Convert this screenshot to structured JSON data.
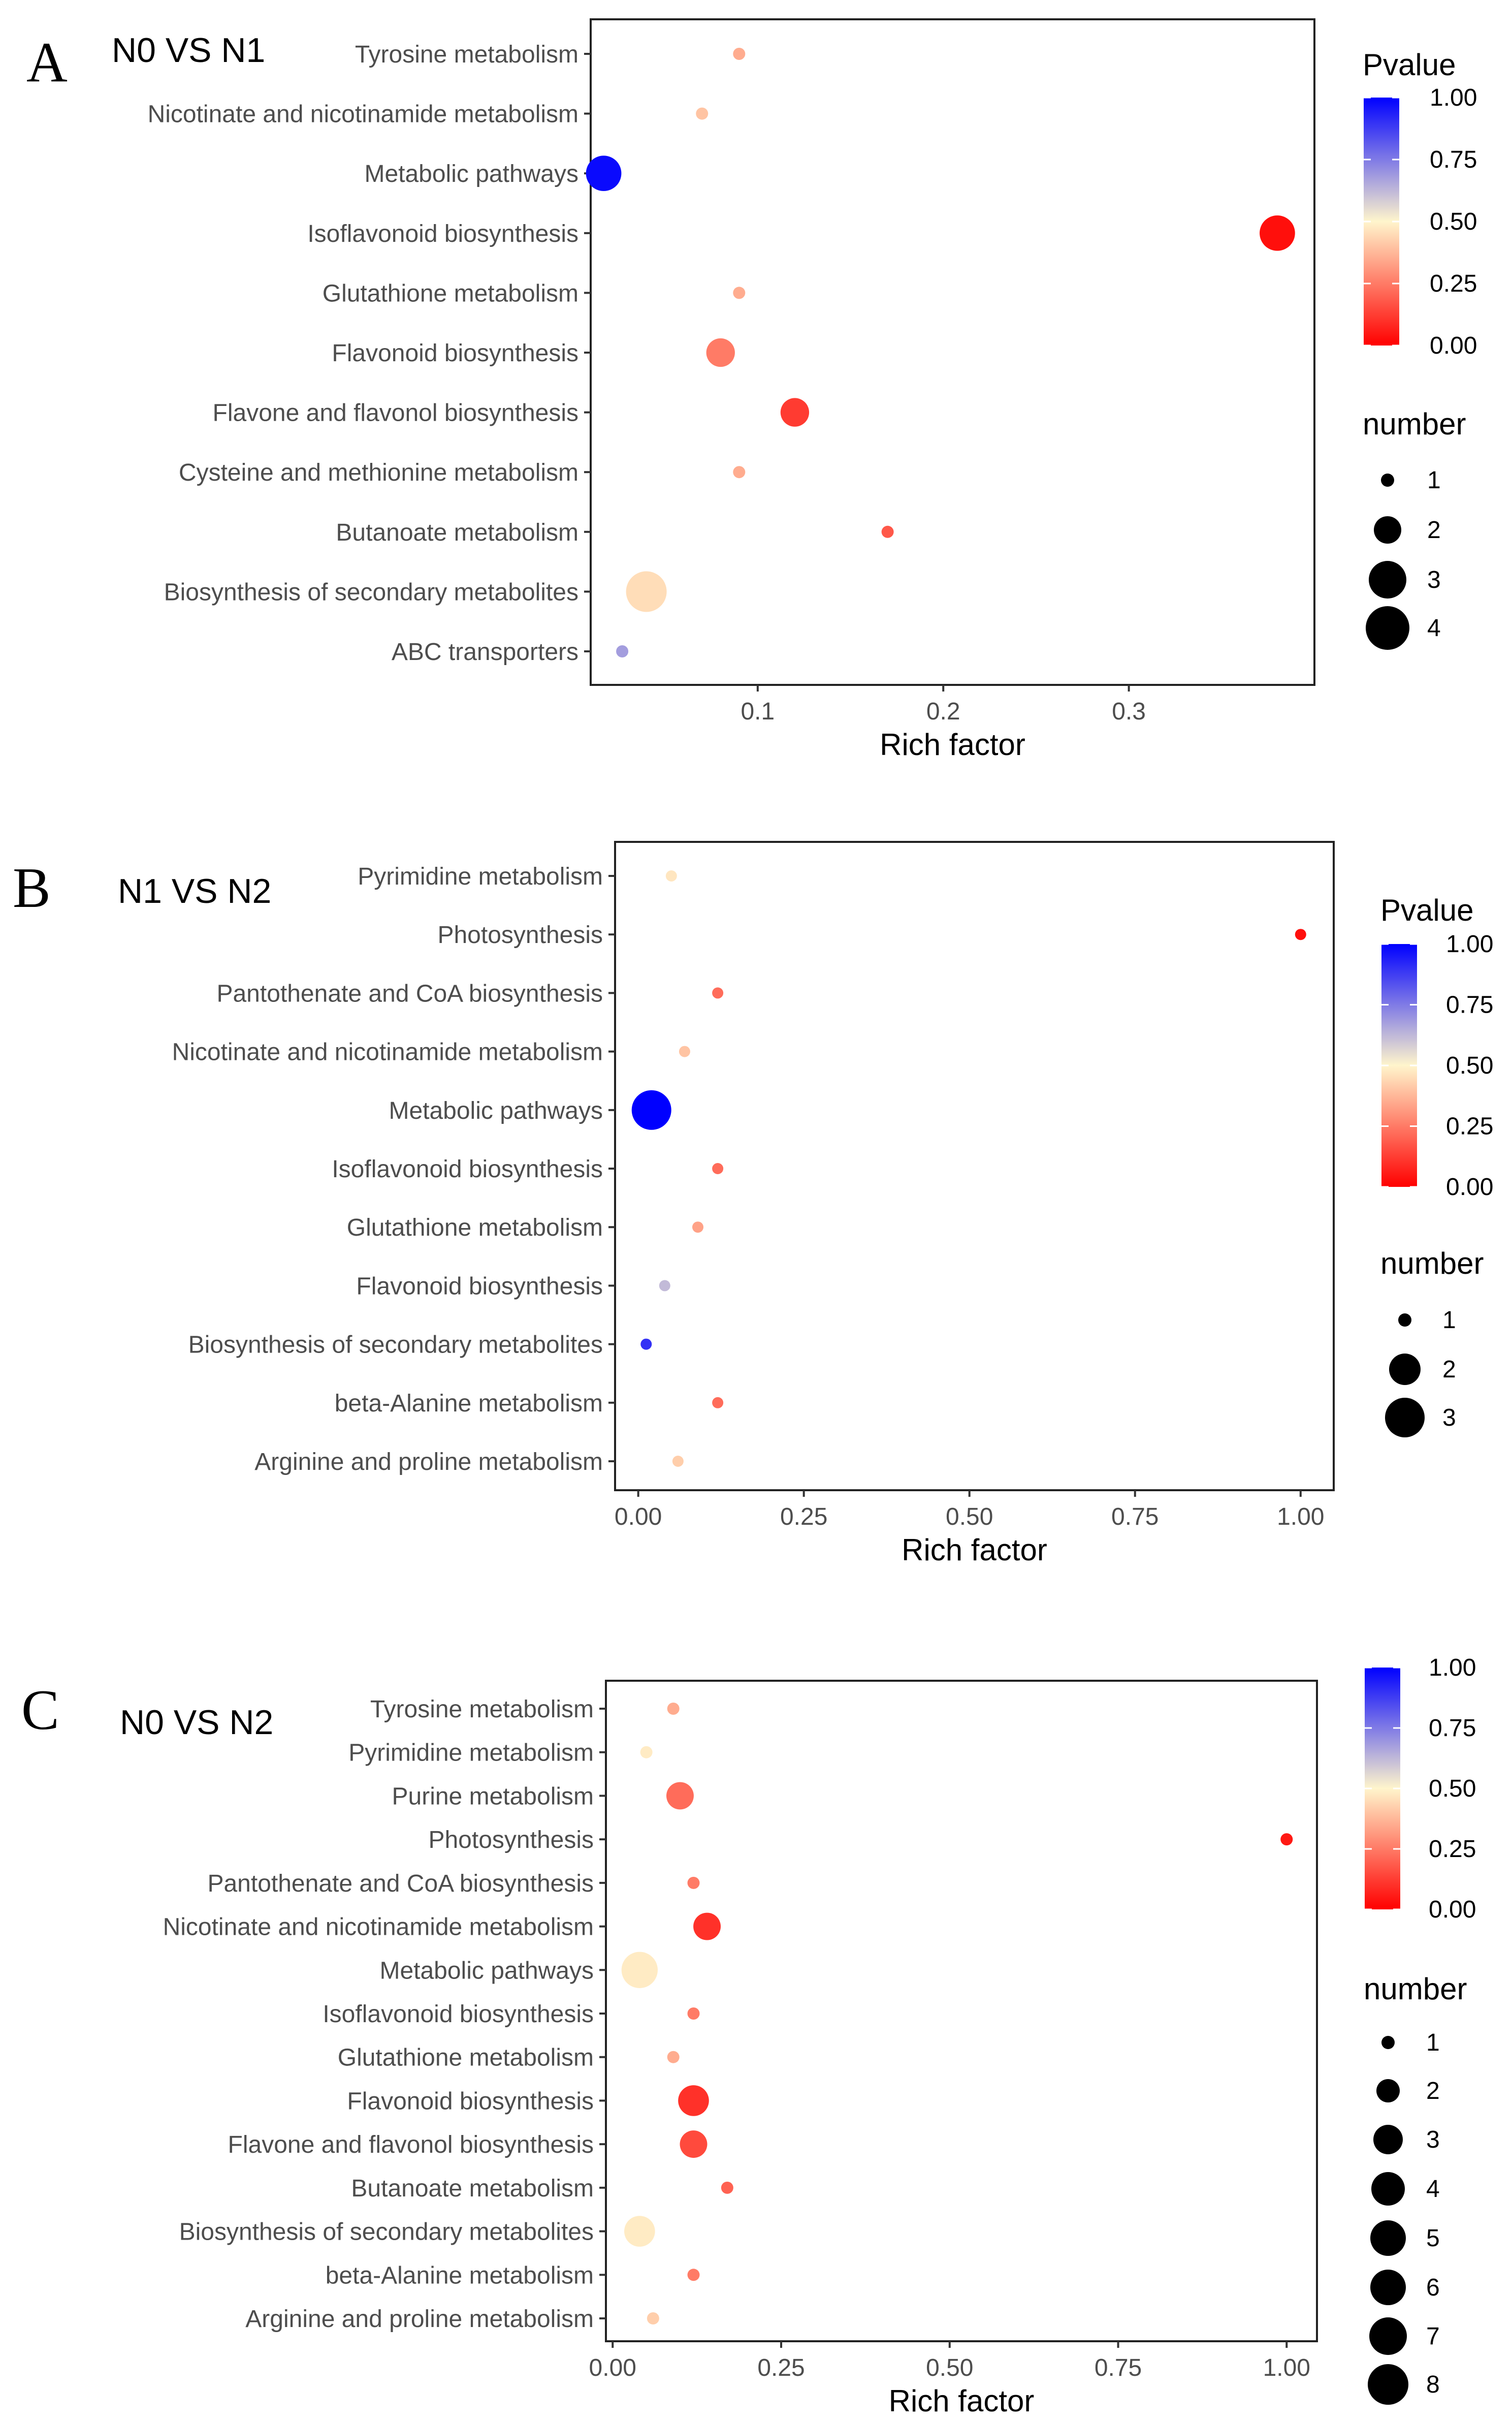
{
  "colors": {
    "scale_high": "#0000FF",
    "scale_mid": "#FFF5CC",
    "scale_low": "#FF0000",
    "panel_border": "#222222",
    "point": "#000000"
  },
  "chart_data": [
    {
      "type": "scatter",
      "panel": "A",
      "title": "N0 VS N1",
      "xlabel": "Rich factor",
      "ylabel": "",
      "xlim": [
        0.01,
        0.4
      ],
      "xticks": [
        0.1,
        0.2,
        0.3
      ],
      "xtick_labels": [
        "0.1",
        "0.2",
        "0.3"
      ],
      "color_legend_title": "Pvalue",
      "color_ticks": [
        "1.00",
        "0.75",
        "0.50",
        "0.25",
        "0.00"
      ],
      "size_legend_title": "number",
      "size_levels": [
        "1",
        "2",
        "3",
        "4"
      ],
      "categories": [
        "Tyrosine metabolism",
        "Nicotinate and nicotinamide metabolism",
        "Metabolic pathways",
        "Isoflavonoid biosynthesis",
        "Glutathione metabolism",
        "Flavonoid biosynthesis",
        "Flavone and flavonol biosynthesis",
        "Cysteine and methionine metabolism",
        "Butanoate metabolism",
        "Biosynthesis of secondary metabolites",
        "ABC transporters"
      ],
      "x": [
        0.09,
        0.07,
        0.017,
        0.38,
        0.09,
        0.08,
        0.12,
        0.09,
        0.17,
        0.04,
        0.027
      ],
      "pvalue": [
        0.35,
        0.4,
        0.98,
        0.03,
        0.35,
        0.25,
        0.12,
        0.35,
        0.18,
        0.45,
        0.68
      ],
      "number": [
        1,
        1,
        3,
        3,
        1,
        2,
        2,
        1,
        1,
        4,
        1
      ]
    },
    {
      "type": "scatter",
      "panel": "B",
      "title": "N1 VS N2",
      "xlabel": "Rich factor",
      "ylabel": "",
      "xlim": [
        -0.035,
        1.05
      ],
      "xticks": [
        0.0,
        0.25,
        0.5,
        0.75,
        1.0
      ],
      "xtick_labels": [
        "0.00",
        "0.25",
        "0.50",
        "0.75",
        "1.00"
      ],
      "color_legend_title": "Pvalue",
      "color_ticks": [
        "1.00",
        "0.75",
        "0.50",
        "0.25",
        "0.00"
      ],
      "size_legend_title": "number",
      "size_levels": [
        "1",
        "2",
        "3"
      ],
      "categories": [
        "Pyrimidine metabolism",
        "Photosynthesis",
        "Pantothenate and CoA biosynthesis",
        "Nicotinate and nicotinamide metabolism",
        "Metabolic pathways",
        "Isoflavonoid biosynthesis",
        "Glutathione metabolism",
        "Flavonoid biosynthesis",
        "Biosynthesis of secondary metabolites",
        "beta-Alanine metabolism",
        "Arginine and proline metabolism"
      ],
      "x": [
        0.05,
        1.0,
        0.12,
        0.07,
        0.02,
        0.12,
        0.09,
        0.04,
        0.012,
        0.12,
        0.06
      ],
      "pvalue": [
        0.47,
        0.03,
        0.22,
        0.4,
        1.0,
        0.22,
        0.33,
        0.62,
        0.9,
        0.22,
        0.42
      ],
      "number": [
        1,
        1,
        1,
        1,
        3,
        1,
        1,
        1,
        1,
        1,
        1
      ]
    },
    {
      "type": "scatter",
      "panel": "C",
      "title": "N0 VS N2",
      "xlabel": "Rich factor",
      "ylabel": "",
      "xlim": [
        -0.01,
        1.045
      ],
      "xticks": [
        0.0,
        0.25,
        0.5,
        0.75,
        1.0
      ],
      "xtick_labels": [
        "0.00",
        "0.25",
        "0.50",
        "0.75",
        "1.00"
      ],
      "color_legend_title": "",
      "color_ticks": [
        "1.00",
        "0.75",
        "0.50",
        "0.25",
        "0.00"
      ],
      "size_legend_title": "number",
      "size_levels": [
        "1",
        "2",
        "3",
        "4",
        "5",
        "6",
        "7",
        "8"
      ],
      "categories": [
        "Tyrosine metabolism",
        "Pyrimidine metabolism",
        "Purine metabolism",
        "Photosynthesis",
        "Pantothenate and CoA biosynthesis",
        "Nicotinate and nicotinamide metabolism",
        "Metabolic pathways",
        "Isoflavonoid biosynthesis",
        "Glutathione metabolism",
        "Flavonoid biosynthesis",
        "Flavone and flavonol biosynthesis",
        "Butanoate metabolism",
        "Biosynthesis of secondary metabolites",
        "beta-Alanine metabolism",
        "Arginine and proline metabolism"
      ],
      "x": [
        0.09,
        0.05,
        0.1,
        1.0,
        0.12,
        0.14,
        0.04,
        0.12,
        0.09,
        0.12,
        0.12,
        0.17,
        0.04,
        0.12,
        0.06
      ],
      "pvalue": [
        0.35,
        0.48,
        0.22,
        0.05,
        0.25,
        0.1,
        0.48,
        0.25,
        0.35,
        0.1,
        0.15,
        0.2,
        0.48,
        0.25,
        0.42
      ],
      "number": [
        1,
        1,
        3,
        1,
        1,
        3,
        6,
        1,
        1,
        4,
        3,
        1,
        4,
        1,
        1
      ]
    }
  ]
}
